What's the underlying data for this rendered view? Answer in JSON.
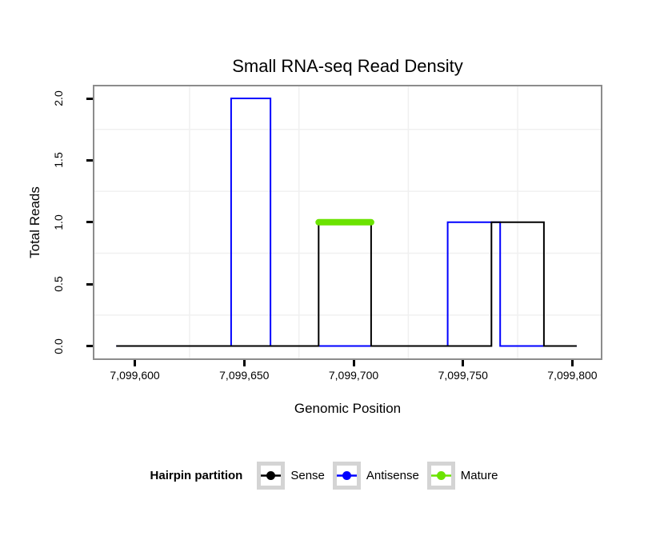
{
  "title": "Small RNA-seq Read Density",
  "axes": {
    "x": {
      "label": "Genomic Position",
      "ticks": [
        {
          "value": 7099600,
          "label": "7,099,600"
        },
        {
          "value": 7099650,
          "label": "7,099,650"
        },
        {
          "value": 7099700,
          "label": "7,099,700"
        },
        {
          "value": 7099750,
          "label": "7,099,750"
        },
        {
          "value": 7099800,
          "label": "7,099,800"
        }
      ]
    },
    "y": {
      "label": "Total Reads",
      "ticks": [
        {
          "value": 0.0,
          "label": "0.0"
        },
        {
          "value": 0.5,
          "label": "0.5"
        },
        {
          "value": 1.0,
          "label": "1.0"
        },
        {
          "value": 1.5,
          "label": "1.5"
        },
        {
          "value": 2.0,
          "label": "2.0"
        }
      ]
    }
  },
  "legend": {
    "title": "Hairpin partition",
    "items": [
      {
        "label": "Sense",
        "color": "#000000"
      },
      {
        "label": "Antisense",
        "color": "#0000FF"
      },
      {
        "label": "Mature",
        "color": "#6BE300"
      }
    ]
  },
  "colors": {
    "panel_border": "#8c8c8c",
    "gridline_minor": "#f0f0f0",
    "legend_key_border": "#d4d4d4",
    "sense": "#000000",
    "antisense": "#0000FF",
    "mature": "#6BE300"
  },
  "chart_data": {
    "type": "line",
    "subtype": "step-coverage",
    "title": "Small RNA-seq Read Density",
    "xlabel": "Genomic Position",
    "ylabel": "Total Reads",
    "x_domain": [
      7099581.5,
      7099813.0
    ],
    "y_domain": [
      -0.1,
      2.097
    ],
    "grid": {
      "major_visible": false,
      "minor_x": [
        7099625,
        7099675,
        7099725,
        7099775
      ],
      "minor_y": [
        0.25,
        0.75,
        1.25,
        1.75
      ],
      "color": "#f0f0f0"
    },
    "legend_position": "bottom",
    "series": [
      {
        "name": "Sense",
        "color": "#000000",
        "width": 2,
        "linecap": "butt",
        "z": 2,
        "points": [
          [
            7099591.5,
            0
          ],
          [
            7099684,
            0
          ],
          [
            7099684,
            1
          ],
          [
            7099708,
            1
          ],
          [
            7099708,
            0
          ],
          [
            7099763,
            0
          ],
          [
            7099763,
            1
          ],
          [
            7099787,
            1
          ],
          [
            7099787,
            0
          ],
          [
            7099802,
            0
          ]
        ]
      },
      {
        "name": "Antisense",
        "color": "#0000FF",
        "width": 2,
        "linecap": "butt",
        "z": 1,
        "points": [
          [
            7099591.5,
            0
          ],
          [
            7099644,
            0
          ],
          [
            7099644,
            2
          ],
          [
            7099662,
            2
          ],
          [
            7099662,
            0
          ],
          [
            7099743,
            0
          ],
          [
            7099743,
            1
          ],
          [
            7099767,
            1
          ],
          [
            7099767,
            0
          ],
          [
            7099802,
            0
          ]
        ]
      },
      {
        "name": "Mature",
        "color": "#6BE300",
        "width": 8,
        "linecap": "round",
        "z": 3,
        "points": [
          [
            7099684,
            1
          ],
          [
            7099708,
            1
          ]
        ]
      }
    ]
  }
}
